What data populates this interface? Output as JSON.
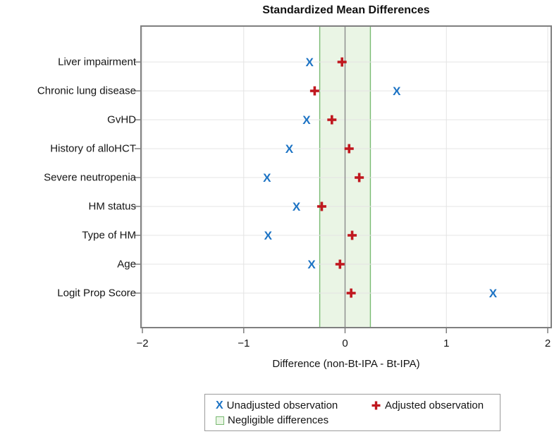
{
  "chart_data": {
    "type": "scatter",
    "title": "Standardized Mean Differences",
    "xlabel": "Difference (non-Bt-IPA - Bt-IPA)",
    "xlim": [
      -2,
      2
    ],
    "xticks": [
      -2,
      -1,
      0,
      1,
      2
    ],
    "xtick_labels": [
      "−2",
      "−1",
      "0",
      "1",
      "2"
    ],
    "categories": [
      "Liver impairment",
      "Chronic lung disease",
      "GvHD",
      "History of alloHCT",
      "Severe neutropenia",
      "HM status",
      "Type of HM",
      "Age",
      "Logit Prop Score"
    ],
    "series": [
      {
        "name": "Unadjusted observation",
        "marker": "X",
        "color": "#1c73c4",
        "values": [
          -0.35,
          0.51,
          -0.38,
          -0.55,
          -0.77,
          -0.48,
          -0.76,
          -0.33,
          1.46
        ]
      },
      {
        "name": "Adjusted observation",
        "marker": "plus",
        "color": "#c0181f",
        "values": [
          -0.03,
          -0.3,
          -0.13,
          0.04,
          0.14,
          -0.23,
          0.07,
          -0.05,
          0.06
        ]
      }
    ],
    "negligible_band": {
      "label": "Negligible differences",
      "range": [
        -0.25,
        0.25
      ],
      "fill": "#eaf5e5",
      "border": "#79ba72"
    },
    "legend_position": "bottom",
    "grid": {
      "horizontal": true,
      "vertical": true,
      "zero_line": true
    },
    "colors": {
      "frame": "#7f7f7f",
      "grid": "#e4e4e4",
      "zero_line": "#8f8f8f",
      "tick": "#7f7f7f",
      "text": "#141414"
    }
  }
}
